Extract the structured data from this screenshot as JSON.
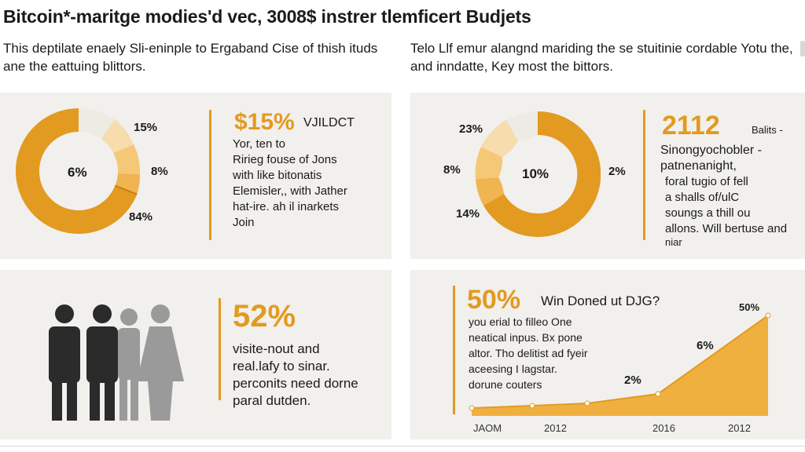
{
  "title": "Bitcoin*-maritge modies'd vec, 3008$ instrer tlemficert Budjets",
  "intro": {
    "left": "This deptilate enaely Sli-eninple to Ergaband Cise of thish ituds ane the eattuing blittors.",
    "right": "Telo Llf emur alangnd mariding the se stuitinie cordable Yotu the, and inndatte, Key most the bittors."
  },
  "panel_top_left": {
    "donut_center": "6%",
    "labels": [
      "15%",
      "8%",
      "84%"
    ],
    "headline": "$15%",
    "headline_side": "VJILDCT",
    "lines": [
      "Yor, ten to",
      "Ririeg fouse of Jons",
      "with like bitonatis",
      "Elemisler,, with Jather",
      "hat-ire. ah il inarkets",
      "Join"
    ]
  },
  "panel_top_right": {
    "donut_center": "10%",
    "labels_left": [
      "23%",
      "8%",
      "14%"
    ],
    "label_right": "2%",
    "headline": "2112",
    "headline_side": "Balits -",
    "lines": [
      "Sinongyochobler -",
      "patnenanight,",
      "foral tugio of fell",
      "a shalls of/ulC",
      "soungs a thill ou",
      "allons. Will bertuse and",
      "niar"
    ]
  },
  "panel_bottom_left": {
    "headline": "52%",
    "lines": [
      "visite-nout and",
      "real.lafy to sinar.",
      "perconits need dorne",
      "paral dutden."
    ]
  },
  "panel_bottom_right": {
    "headline": "50%",
    "headline_side": "Win Doned ut DJG?",
    "lines": [
      "you erial to filleo One",
      "neatical inpus. Bx pone",
      "altor. Tho delitist ad fyeir",
      "aceesing I lagstar.",
      "dorune couters"
    ],
    "chart_labels": [
      "2%",
      "6%",
      "50%"
    ],
    "x_labels": [
      "JAOM",
      "2012",
      "2016",
      "2012"
    ]
  },
  "colors": {
    "accent": "#e39a20",
    "accent_light": "#f5c878",
    "accent_pale": "#f7dcae",
    "card_bg": "#f1f0ed",
    "figure_dark": "#2b2b2b",
    "figure_gray": "#9a9a9a"
  },
  "icons": [
    "people-group-icon"
  ]
}
